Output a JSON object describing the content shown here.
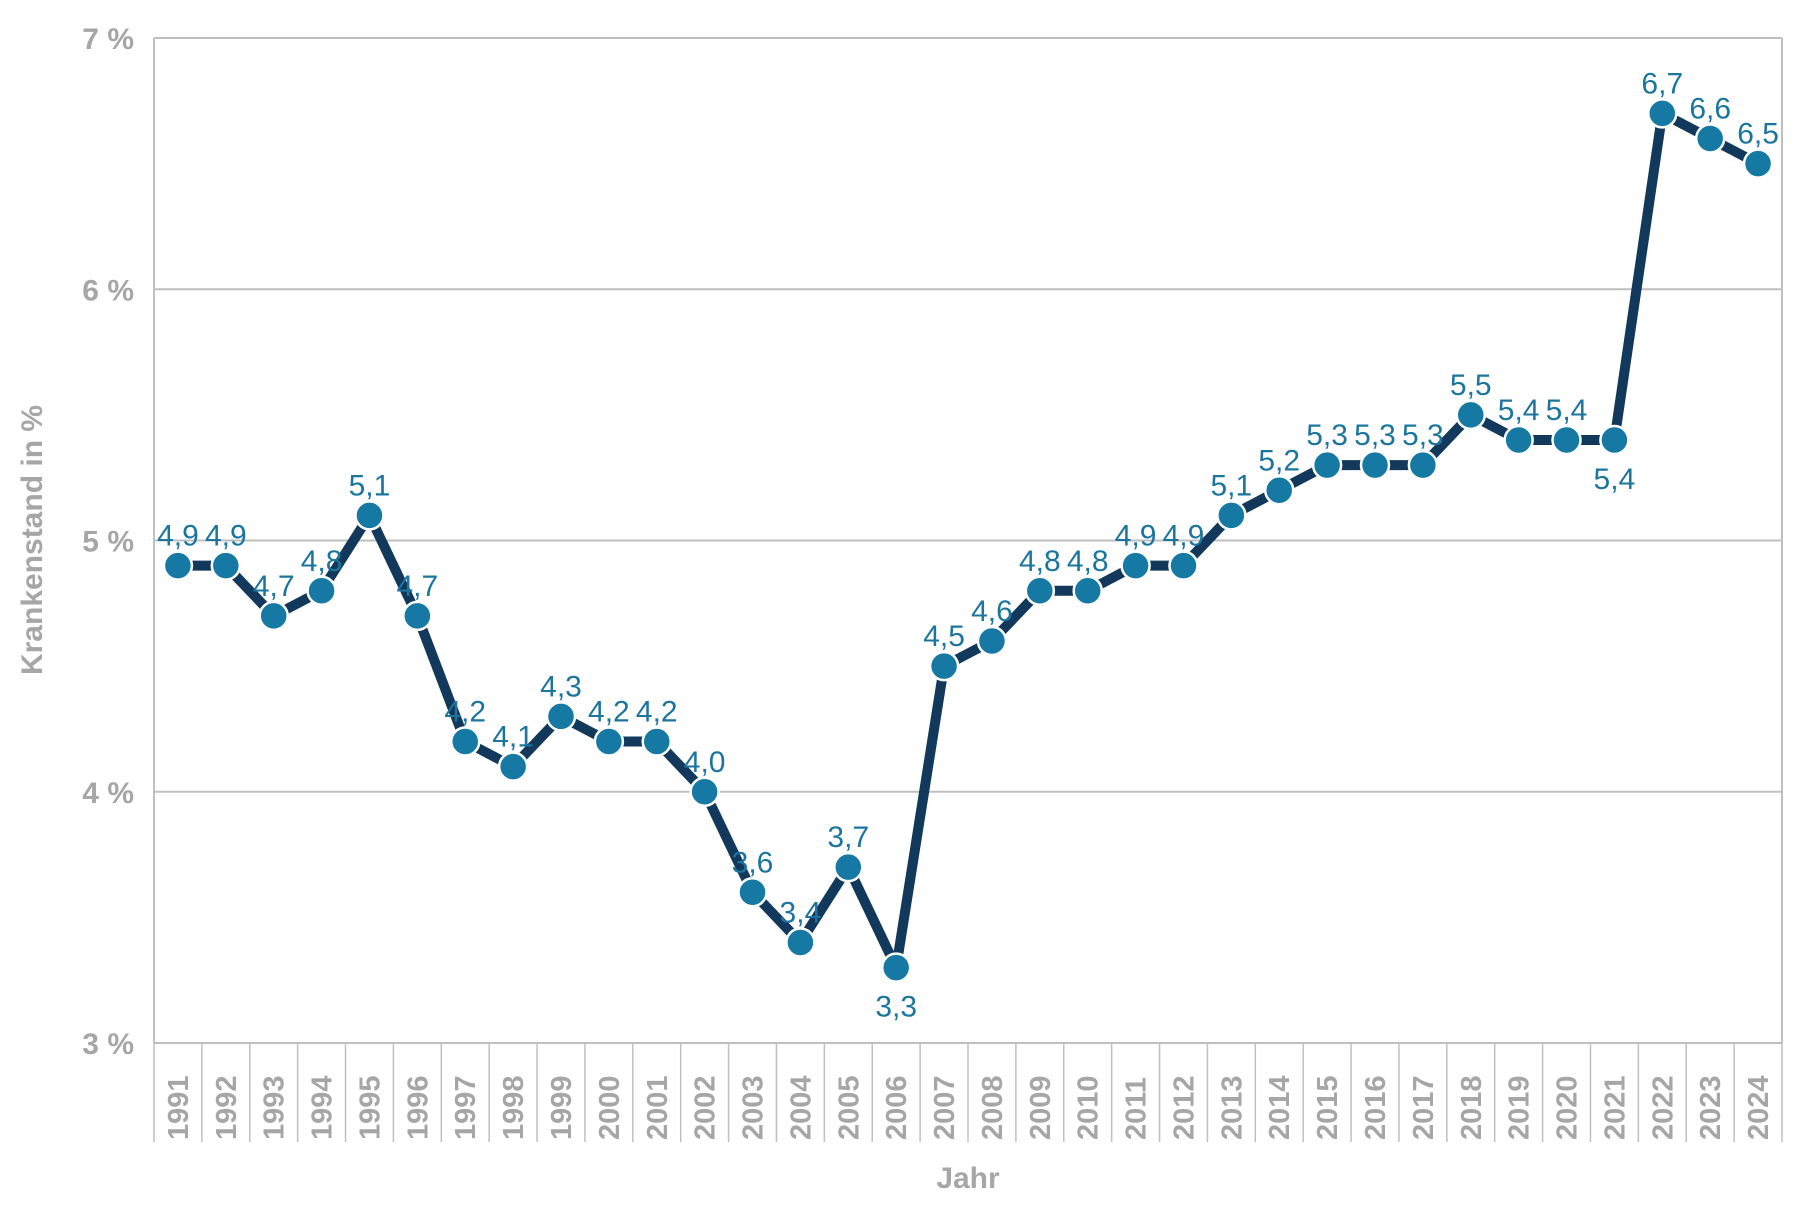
{
  "chart": {
    "colors": {
      "line": "#12395b",
      "marker_fill": "#1579a3",
      "marker_border": "#ffffff",
      "data_label": "#1b759f",
      "axis_text": "#a6a6a6",
      "grid": "#bfbfbf"
    },
    "y_axis_title": "Krankenstand in %",
    "x_axis_title": "Jahr"
  },
  "chart_data": {
    "type": "line",
    "title": "",
    "xlabel": "Jahr",
    "ylabel": "Krankenstand in %",
    "categories": [
      "1991",
      "1992",
      "1993",
      "1994",
      "1995",
      "1996",
      "1997",
      "1998",
      "1999",
      "2000",
      "2001",
      "2002",
      "2003",
      "2004",
      "2005",
      "2006",
      "2007",
      "2008",
      "2009",
      "2010",
      "2011",
      "2012",
      "2013",
      "2014",
      "2015",
      "2016",
      "2017",
      "2018",
      "2019",
      "2020",
      "2021",
      "2022",
      "2023",
      "2024"
    ],
    "values": [
      4.9,
      4.9,
      4.7,
      4.8,
      5.1,
      4.7,
      4.2,
      4.1,
      4.3,
      4.2,
      4.2,
      4.0,
      3.6,
      3.4,
      3.7,
      3.3,
      4.5,
      4.6,
      4.8,
      4.8,
      4.9,
      4.9,
      5.1,
      5.2,
      5.3,
      5.3,
      5.3,
      5.5,
      5.4,
      5.4,
      5.4,
      6.7,
      6.6,
      6.5
    ],
    "data_labels": [
      "4,9",
      "4,9",
      "4,7",
      "4,8",
      "5,1",
      "4,7",
      "4,2",
      "4,1",
      "4,3",
      "4,2",
      "4,2",
      "4,0",
      "3,6",
      "3,4",
      "3,7",
      "3,3",
      "4,5",
      "4,6",
      "4,8",
      "4,8",
      "4,9",
      "4,9",
      "5,1",
      "5,2",
      "5,3",
      "5,3",
      "5,3",
      "5,5",
      "5,4",
      "5,4",
      "5,4",
      "6,7",
      "6,6",
      "6,5"
    ],
    "labels_below": [
      "2006",
      "2021"
    ],
    "y_tick_labels": [
      "3 %",
      "4 %",
      "5 %",
      "6 %",
      "7 %"
    ],
    "ylim": [
      3,
      7
    ],
    "y_tick_step": 1,
    "grid": "horizontal",
    "legend": "none",
    "marker": "circle"
  }
}
